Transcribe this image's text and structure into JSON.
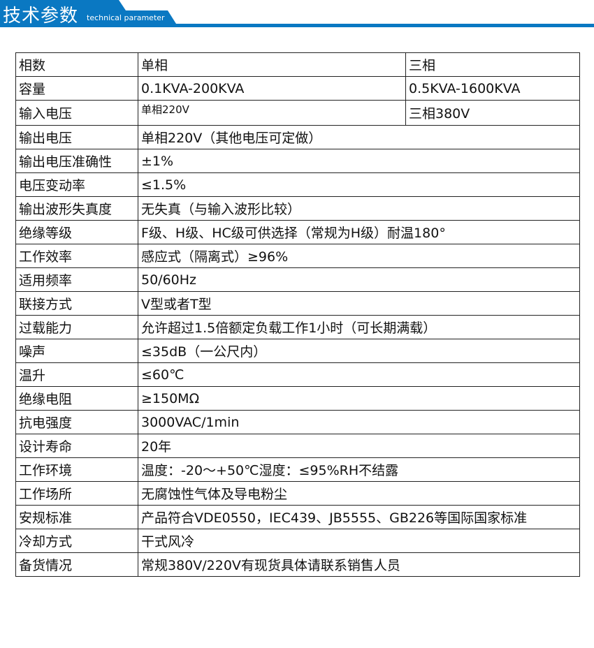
{
  "header": {
    "title": "技术参数",
    "subtitle": "technical parameter",
    "color": "#0a78c2"
  },
  "table": {
    "phase_row": {
      "label": "相数",
      "single": "单相",
      "three": "三相"
    },
    "capacity_row": {
      "label": "容量",
      "single": "0.1KVA-200KVA",
      "three": "0.5KVA-1600KVA"
    },
    "input_row": {
      "label": "输入电压",
      "single": "单相220V",
      "three": "三相380V"
    },
    "rows": [
      {
        "label": "输出电压",
        "value": "单相220V（其他电压可定做）"
      },
      {
        "label": "输出电压准确性",
        "value": "±1%"
      },
      {
        "label": "电压变动率",
        "value": "≤1.5%"
      },
      {
        "label": "输出波形失真度",
        "value": "无失真（与输入波形比较）"
      },
      {
        "label": "绝缘等级",
        "value": "F级、H级、HC级可供选择（常规为H级）耐温180°"
      },
      {
        "label": "工作效率",
        "value": "感应式（隔离式）≥96%"
      },
      {
        "label": "适用频率",
        "value": "50/60Hz"
      },
      {
        "label": "联接方式",
        "value": "V型或者T型"
      },
      {
        "label": "过载能力",
        "value": "允许超过1.5倍额定负载工作1小时（可长期满载）"
      },
      {
        "label": "噪声",
        "value": "≤35dB（一公尺内）"
      },
      {
        "label": "温升",
        "value": "≤60℃"
      },
      {
        "label": "绝缘电阻",
        "value": "≥150MΩ"
      },
      {
        "label": "抗电强度",
        "value": "3000VAC/1min"
      },
      {
        "label": "设计寿命",
        "value": "20年"
      },
      {
        "label": "工作环境",
        "value": "温度：-20～+50℃湿度：≤95%RH不结露"
      },
      {
        "label": "工作场所",
        "value": "无腐蚀性气体及导电粉尘"
      },
      {
        "label": "安规标准",
        "value": "产品符合VDE0550，IEC439、JB5555、GB226等国际国家标准"
      },
      {
        "label": "冷却方式",
        "value": "干式风冷"
      },
      {
        "label": "备货情况",
        "value": "常规380V/220V有现货具体请联系销售人员"
      }
    ]
  }
}
